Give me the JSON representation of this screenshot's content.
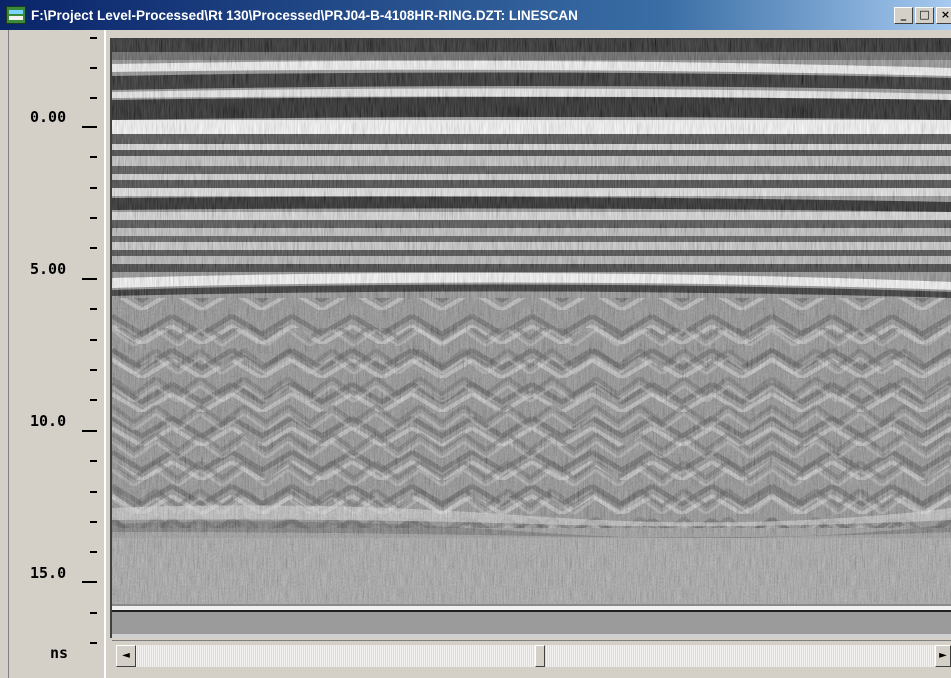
{
  "window": {
    "title": "F:\\Project Level-Processed\\Rt 130\\Processed\\PRJ04-B-4108HR-RING.DZT: LINESCAN",
    "controls": {
      "minimize": "_",
      "maximize": "□",
      "close": "×"
    }
  },
  "axis": {
    "labels": [
      "0.00",
      "5.00",
      "10.0",
      "15.0"
    ],
    "unit": "ns"
  },
  "scrollbar": {
    "left_arrow": "◄",
    "right_arrow": "►"
  },
  "colors": {
    "titlebar_start": "#0a246a",
    "titlebar_end": "#a6caf0",
    "window_face": "#d4d0c8"
  }
}
